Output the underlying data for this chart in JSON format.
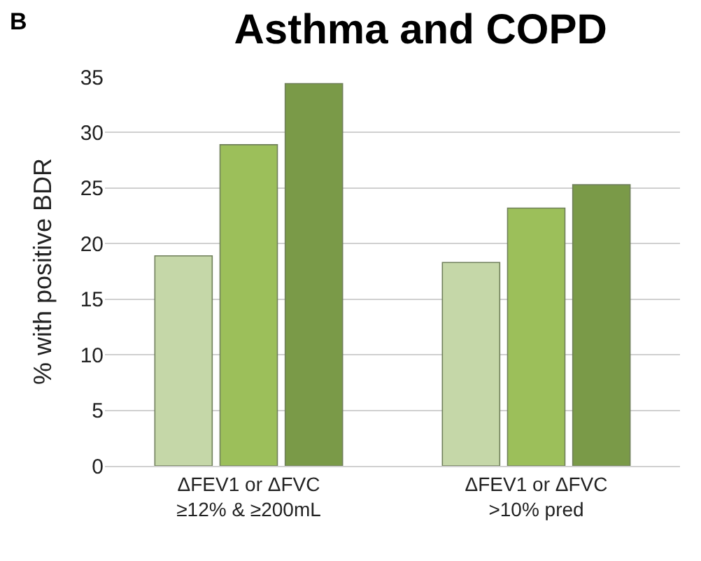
{
  "chart_data": {
    "type": "bar",
    "title": "Asthma and COPD",
    "ylabel": "% with positive BDR",
    "annotations": [
      "B"
    ],
    "categories": [
      "ΔFEV1 or ΔFVC\n≥12% & ≥200mL",
      "ΔFEV1 or ΔFVC\n>10% pred"
    ],
    "series": [
      {
        "color": "#c5d7a8",
        "values": [
          18.9,
          18.3
        ]
      },
      {
        "color": "#9cbf5a",
        "values": [
          28.9,
          23.2
        ]
      },
      {
        "color": "#7a9a48",
        "values": [
          34.4,
          25.3
        ]
      }
    ],
    "ylim": [
      0,
      35
    ],
    "yticks": [
      0,
      5,
      10,
      15,
      20,
      25,
      30,
      35
    ],
    "grid": "y"
  }
}
